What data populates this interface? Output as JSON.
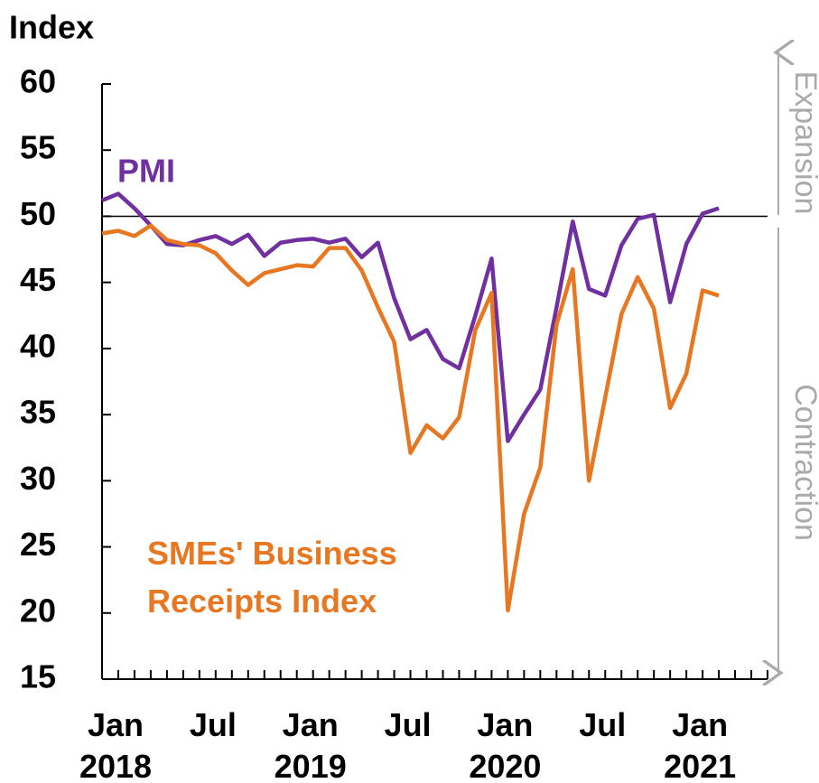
{
  "chart_data": {
    "type": "line",
    "y_label": "Index",
    "categories": [
      "Jan 2018",
      null,
      null,
      null,
      null,
      null,
      "Jul",
      null,
      null,
      null,
      null,
      null,
      "Jan 2019",
      null,
      null,
      null,
      null,
      null,
      "Jul",
      null,
      null,
      null,
      null,
      null,
      "Jan 2020",
      null,
      null,
      null,
      null,
      null,
      "Jul",
      null,
      null,
      null,
      null,
      null,
      "Jan 2021",
      null,
      null
    ],
    "xlim": [
      0,
      41
    ],
    "ylim": [
      15,
      60
    ],
    "yticks": [
      15,
      20,
      25,
      30,
      35,
      40,
      45,
      50,
      55,
      60
    ],
    "reference_line": 50,
    "annotations": [
      "Expansion",
      "Contraction"
    ],
    "series": [
      {
        "name": "PMI",
        "color": "#7030a0",
        "values": [
          51.2,
          51.7,
          50.6,
          49.3,
          47.9,
          47.8,
          48.2,
          48.5,
          47.9,
          48.6,
          47.0,
          48.0,
          48.2,
          48.3,
          48.0,
          48.3,
          46.9,
          48.0,
          43.8,
          40.7,
          41.4,
          39.2,
          38.5,
          42.5,
          46.8,
          33.0,
          35.0,
          36.9,
          43.1,
          49.6,
          44.5,
          44.0,
          47.8,
          49.8,
          50.1,
          43.5,
          47.9,
          50.2,
          50.6
        ]
      },
      {
        "name": "SMEs' Business Receipts Index",
        "color": "#e87722",
        "values": [
          48.7,
          48.9,
          48.5,
          49.3,
          48.2,
          47.9,
          47.8,
          47.2,
          45.9,
          44.8,
          45.7,
          46.0,
          46.3,
          46.2,
          47.6,
          47.6,
          45.9,
          43.1,
          40.5,
          32.1,
          34.2,
          33.2,
          34.8,
          41.4,
          44.2,
          20.2,
          27.5,
          31.0,
          41.8,
          46.0,
          30.0,
          36.3,
          42.6,
          45.4,
          43.0,
          35.5,
          38.1,
          44.4,
          44.0
        ]
      }
    ]
  }
}
